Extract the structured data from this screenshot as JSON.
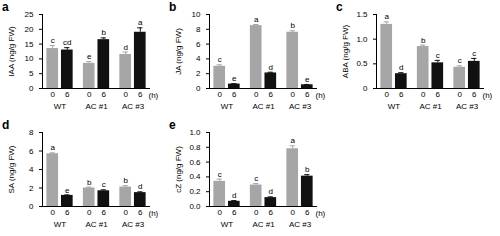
{
  "chart_data": [
    {
      "type": "bar",
      "title": "a",
      "y_label": "IAA (ng/g FW)",
      "x_label": "(h)",
      "categories": [
        "WT",
        "AC #1",
        "AC #3"
      ],
      "series": [
        {
          "name": "0",
          "color": "#a6a6a6",
          "values": [
            13.5,
            8.5,
            11.5
          ],
          "errors": [
            1.0,
            0.6,
            0.8
          ],
          "letters": [
            "c",
            "e",
            "d"
          ]
        },
        {
          "name": "6",
          "color": "#111111",
          "values": [
            13.0,
            16.5,
            19.0
          ],
          "errors": [
            0.8,
            0.6,
            1.5
          ],
          "letters": [
            "cd",
            "b",
            "a"
          ]
        }
      ],
      "ylim": [
        0,
        25
      ],
      "yticks": [
        0,
        5,
        10,
        15,
        20,
        25
      ]
    },
    {
      "type": "bar",
      "title": "b",
      "y_label": "JA (ng/g FW)",
      "x_label": "(h)",
      "categories": [
        "WT",
        "AC #1",
        "AC #3"
      ],
      "series": [
        {
          "name": "0",
          "color": "#a6a6a6",
          "values": [
            3.0,
            8.5,
            7.6
          ],
          "errors": [
            0.2,
            0.15,
            0.2
          ],
          "letters": [
            "c",
            "a",
            "b"
          ]
        },
        {
          "name": "6",
          "color": "#111111",
          "values": [
            0.6,
            2.1,
            0.5
          ],
          "errors": [
            0.05,
            0.1,
            0.05
          ],
          "letters": [
            "e",
            "d",
            "e"
          ]
        }
      ],
      "ylim": [
        0,
        10
      ],
      "yticks": [
        0,
        2,
        4,
        6,
        8,
        10
      ]
    },
    {
      "type": "bar",
      "title": "c",
      "y_label": "ABA (ng/g FW)",
      "x_label": "(h)",
      "categories": [
        "WT",
        "AC #1",
        "AC #3"
      ],
      "series": [
        {
          "name": "0",
          "color": "#a6a6a6",
          "values": [
            1.3,
            0.85,
            0.43
          ],
          "errors": [
            0.05,
            0.03,
            0.03
          ],
          "letters": [
            "a",
            "b",
            "c"
          ]
        },
        {
          "name": "6",
          "color": "#111111",
          "values": [
            0.3,
            0.52,
            0.55
          ],
          "errors": [
            0.02,
            0.05,
            0.06
          ],
          "letters": [
            "d",
            "c",
            "c"
          ]
        }
      ],
      "ylim": [
        0,
        1.5
      ],
      "yticks": [
        0,
        0.5,
        {
          "value": 1,
          "label": "1.0"
        },
        1.5
      ]
    },
    {
      "type": "bar",
      "title": "d",
      "y_label": "SA (ng/g FW)",
      "x_label": "(h)",
      "categories": [
        "WT",
        "AC #1",
        "AC #3"
      ],
      "series": [
        {
          "name": "0",
          "color": "#a6a6a6",
          "values": [
            5.7,
            2.0,
            2.1
          ],
          "errors": [
            0.1,
            0.1,
            0.15
          ],
          "letters": [
            "a",
            "b",
            "b"
          ]
        },
        {
          "name": "6",
          "color": "#111111",
          "values": [
            1.2,
            1.7,
            1.5
          ],
          "errors": [
            0.05,
            0.1,
            0.08
          ],
          "letters": [
            "e",
            "c",
            "d"
          ]
        }
      ],
      "ylim": [
        0,
        8
      ],
      "yticks": [
        0,
        2,
        4,
        6,
        8
      ]
    },
    {
      "type": "bar",
      "title": "e",
      "y_label": "cZ (ng/g FW)",
      "x_label": "(h)",
      "categories": [
        "WT",
        "AC #1",
        "AC #3"
      ],
      "series": [
        {
          "name": "0",
          "color": "#a6a6a6",
          "values": [
            0.34,
            0.29,
            0.78
          ],
          "errors": [
            0.03,
            0.02,
            0.04
          ],
          "letters": [
            "c",
            "c",
            "a"
          ]
        },
        {
          "name": "6",
          "color": "#111111",
          "values": [
            0.07,
            0.12,
            0.41
          ],
          "errors": [
            0.01,
            0.01,
            0.02
          ],
          "letters": [
            "d",
            "d",
            "b"
          ]
        }
      ],
      "ylim": [
        0,
        1
      ],
      "yticks": [
        {
          "value": 0,
          "label": "0.0"
        },
        0.2,
        0.4,
        0.6,
        0.8,
        {
          "value": 1,
          "label": "1.0"
        }
      ]
    }
  ]
}
